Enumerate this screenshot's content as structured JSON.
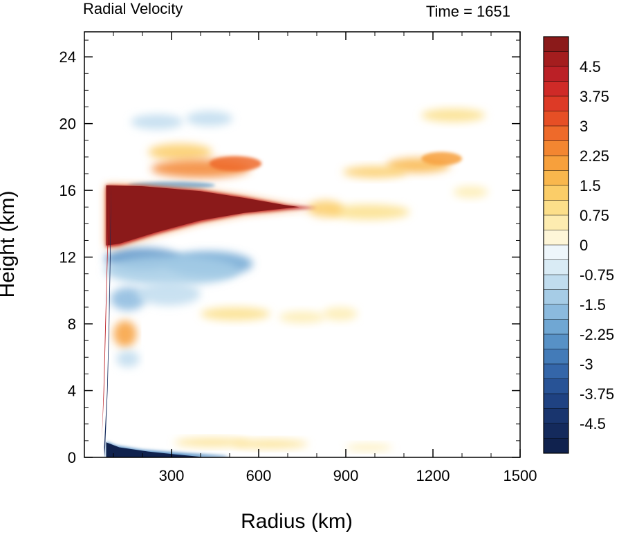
{
  "chart_data": {
    "type": "heatmap",
    "title_left": "Radial Velocity",
    "title_right": "Time = 1651",
    "xlabel": "Radius (km)",
    "ylabel": "Height (km)",
    "xlim": [
      0,
      1500
    ],
    "ylim": [
      0,
      25.5
    ],
    "x_ticks": [
      300,
      600,
      900,
      1200,
      1500
    ],
    "x_tick_labels": [
      "300",
      "600",
      "900",
      "1200",
      "1500"
    ],
    "y_ticks": [
      0,
      4,
      8,
      12,
      16,
      20,
      24
    ],
    "y_tick_labels": [
      "0",
      "4",
      "8",
      "12",
      "16",
      "20",
      "24"
    ],
    "grid": false,
    "colorbar": {
      "range": [
        -5.25,
        5.25
      ],
      "levels": 28,
      "tick_values": [
        4.5,
        3.75,
        3,
        2.25,
        1.5,
        0.75,
        0,
        -0.75,
        -1.5,
        -2.25,
        -3,
        -3.75,
        -4.5
      ],
      "tick_labels": [
        "4.5",
        "3.75",
        "3",
        "2.25",
        "1.5",
        "0.75",
        "0",
        "-0.75",
        "-1.5",
        "-2.25",
        "-3",
        "-3.75",
        "-4.5"
      ],
      "colors_top_to_bottom": [
        "#8b1a1a",
        "#a41d1e",
        "#bb2026",
        "#cf2a27",
        "#dd3a26",
        "#e64f25",
        "#ee6a2a",
        "#f38631",
        "#f7a03c",
        "#f9b74d",
        "#fbcd68",
        "#fcdf8a",
        "#fdecb0",
        "#fef6d8",
        "#eef6fb",
        "#d9ebf5",
        "#c0dcee",
        "#a6cce6",
        "#8bbade",
        "#70a7d3",
        "#5791c6",
        "#437bb8",
        "#3466a9",
        "#285396",
        "#1f4282",
        "#19356e",
        "#142a5c",
        "#10224e"
      ]
    },
    "features": [
      {
        "kind": "outflow-jet",
        "sign": "positive",
        "value": 5.25,
        "r_range": [
          80,
          800
        ],
        "z_range": [
          12.5,
          16.3
        ],
        "description_only": true
      },
      {
        "kind": "inflow-layer",
        "sign": "negative",
        "value": -5.25,
        "r_range": [
          80,
          450
        ],
        "z_range": [
          0,
          0.9
        ],
        "description_only": true
      }
    ]
  }
}
